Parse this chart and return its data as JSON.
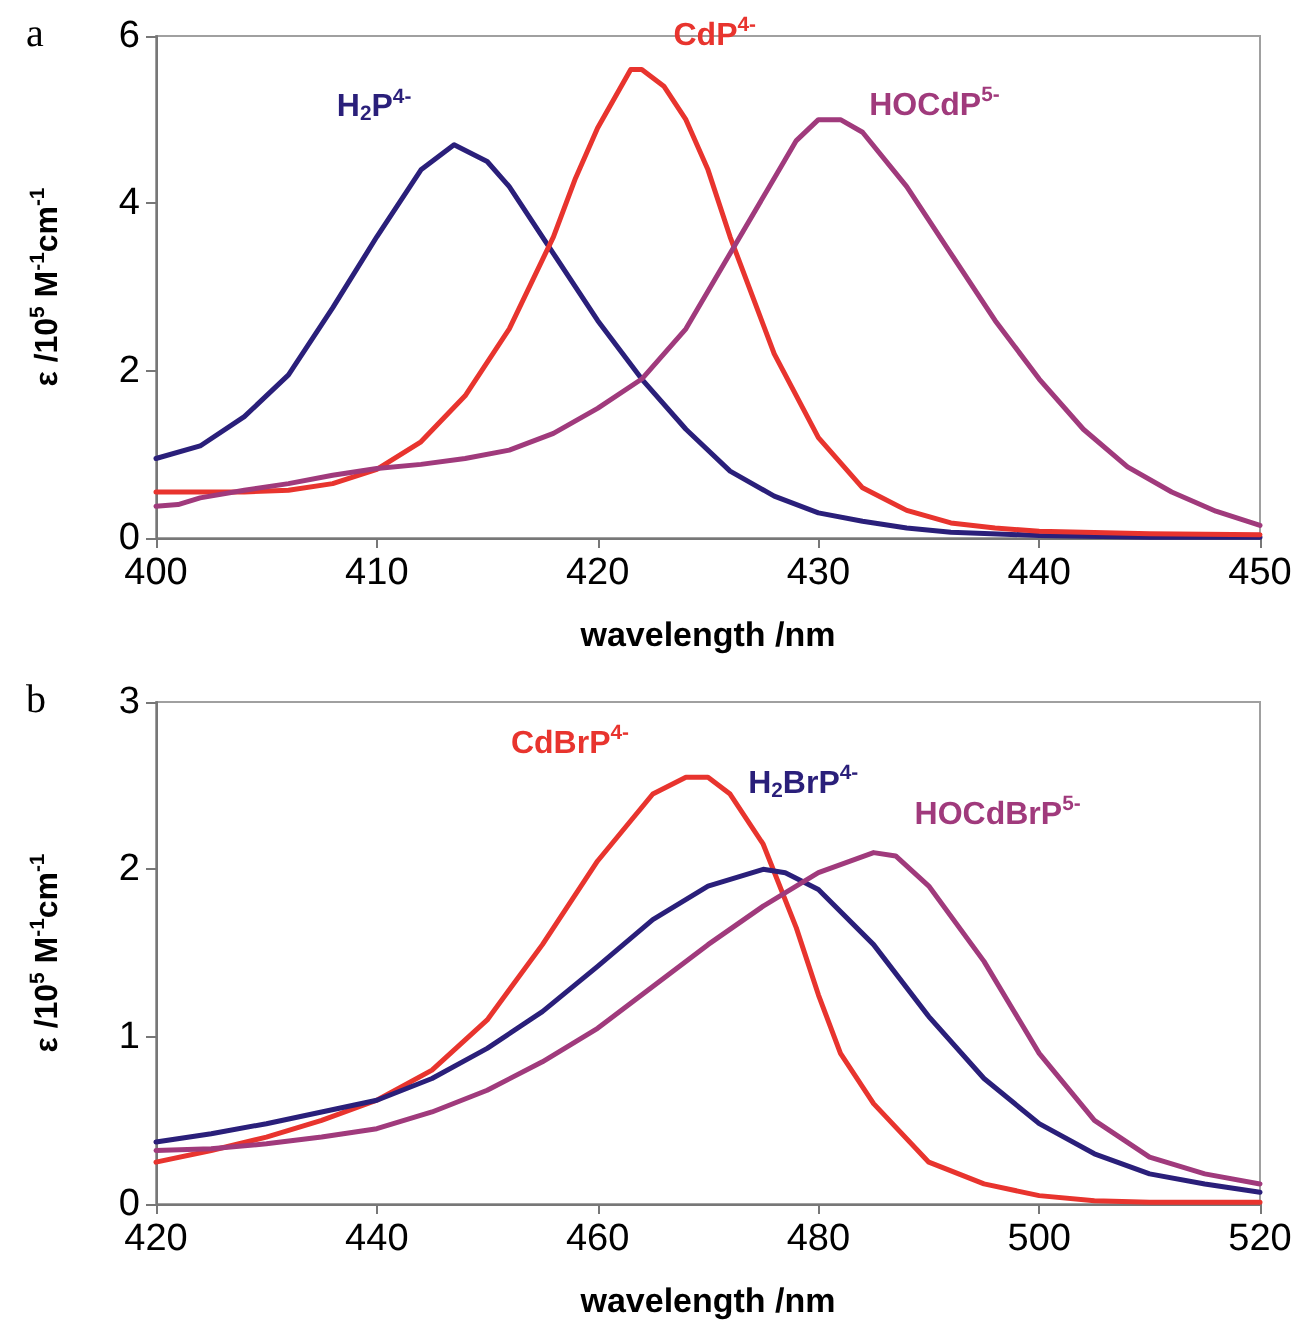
{
  "chart_data": [
    {
      "type": "line",
      "title": "a",
      "xlabel": "wavelength /nm",
      "ylabel": "ε /10$^{5}$ M$^{-1}$cm$^{-1}$",
      "xlim": [
        400,
        450
      ],
      "xticks": [
        400,
        410,
        420,
        430,
        440,
        450
      ],
      "ylim": [
        0,
        6
      ],
      "yticks": [
        0,
        2,
        4,
        6
      ],
      "grid": false,
      "legend": false,
      "series": [
        {
          "name": "H$_{2}$P$^{4-}$",
          "color": "#2a1f7a",
          "x": [
            400,
            402,
            404,
            406,
            408,
            410,
            412,
            413.5,
            415,
            416,
            418,
            420,
            422,
            424,
            426,
            428,
            430,
            432,
            434,
            436,
            440,
            445,
            450
          ],
          "values": [
            0.95,
            1.1,
            1.45,
            1.95,
            2.75,
            3.6,
            4.4,
            4.7,
            4.5,
            4.2,
            3.4,
            2.6,
            1.9,
            1.3,
            0.8,
            0.5,
            0.3,
            0.2,
            0.12,
            0.07,
            0.03,
            0.01,
            0.01
          ]
        },
        {
          "name": "CdP$^{4-}$",
          "color": "#e8342e",
          "x": [
            400,
            404,
            406,
            408,
            410,
            412,
            414,
            416,
            418,
            419,
            420,
            421.5,
            422,
            423,
            424,
            425,
            426,
            428,
            430,
            432,
            434,
            436,
            438,
            440,
            445,
            450
          ],
          "values": [
            0.55,
            0.55,
            0.57,
            0.65,
            0.82,
            1.15,
            1.7,
            2.5,
            3.6,
            4.3,
            4.9,
            5.6,
            5.6,
            5.4,
            5.0,
            4.4,
            3.6,
            2.2,
            1.2,
            0.6,
            0.33,
            0.18,
            0.12,
            0.08,
            0.05,
            0.04
          ]
        },
        {
          "name": "HOCdP$^{5-}$",
          "color": "#a03a7c",
          "x": [
            400,
            401,
            402,
            404,
            406,
            408,
            410,
            412,
            414,
            416,
            418,
            420,
            422,
            424,
            426,
            428,
            429,
            430,
            431,
            432,
            434,
            436,
            438,
            440,
            442,
            444,
            446,
            448,
            450
          ],
          "values": [
            0.38,
            0.4,
            0.48,
            0.57,
            0.65,
            0.75,
            0.83,
            0.88,
            0.95,
            1.05,
            1.25,
            1.55,
            1.9,
            2.5,
            3.4,
            4.3,
            4.75,
            5.0,
            5.0,
            4.85,
            4.2,
            3.4,
            2.6,
            1.9,
            1.3,
            0.85,
            0.55,
            0.32,
            0.15
          ]
        }
      ]
    },
    {
      "type": "line",
      "title": "b",
      "xlabel": "wavelength /nm",
      "ylabel": "ε /10$^{5}$ M$^{-1}$cm$^{-1}$",
      "xlim": [
        420,
        520
      ],
      "xticks": [
        420,
        440,
        460,
        480,
        500,
        520
      ],
      "ylim": [
        0,
        3
      ],
      "yticks": [
        0,
        1,
        2,
        3
      ],
      "grid": false,
      "legend": false,
      "series": [
        {
          "name": "CdBrP$^{4-}$",
          "color": "#e8342e",
          "x": [
            420,
            425,
            430,
            435,
            440,
            445,
            450,
            455,
            460,
            465,
            468,
            470,
            472,
            475,
            478,
            480,
            482,
            485,
            490,
            495,
            500,
            505,
            510,
            520
          ],
          "values": [
            0.25,
            0.32,
            0.4,
            0.5,
            0.62,
            0.8,
            1.1,
            1.55,
            2.05,
            2.45,
            2.55,
            2.55,
            2.45,
            2.15,
            1.65,
            1.25,
            0.9,
            0.6,
            0.25,
            0.12,
            0.05,
            0.02,
            0.01,
            0.01
          ]
        },
        {
          "name": "H$_{2}$BrP$^{4-}$",
          "color": "#2a1f7a",
          "x": [
            420,
            425,
            430,
            435,
            440,
            445,
            450,
            455,
            460,
            465,
            470,
            475,
            477,
            480,
            485,
            490,
            495,
            500,
            505,
            510,
            515,
            520
          ],
          "values": [
            0.37,
            0.42,
            0.48,
            0.55,
            0.62,
            0.75,
            0.93,
            1.15,
            1.42,
            1.7,
            1.9,
            2.0,
            1.98,
            1.88,
            1.55,
            1.12,
            0.75,
            0.48,
            0.3,
            0.18,
            0.12,
            0.07
          ]
        },
        {
          "name": "HOCdBrP$^{5-}$",
          "color": "#a03a7c",
          "x": [
            420,
            425,
            430,
            435,
            440,
            445,
            450,
            455,
            460,
            465,
            470,
            475,
            480,
            485,
            487,
            490,
            495,
            500,
            505,
            510,
            515,
            520
          ],
          "values": [
            0.32,
            0.33,
            0.36,
            0.4,
            0.45,
            0.55,
            0.68,
            0.85,
            1.05,
            1.3,
            1.55,
            1.78,
            1.98,
            2.1,
            2.08,
            1.9,
            1.45,
            0.9,
            0.5,
            0.28,
            0.18,
            0.12
          ]
        }
      ]
    }
  ]
}
